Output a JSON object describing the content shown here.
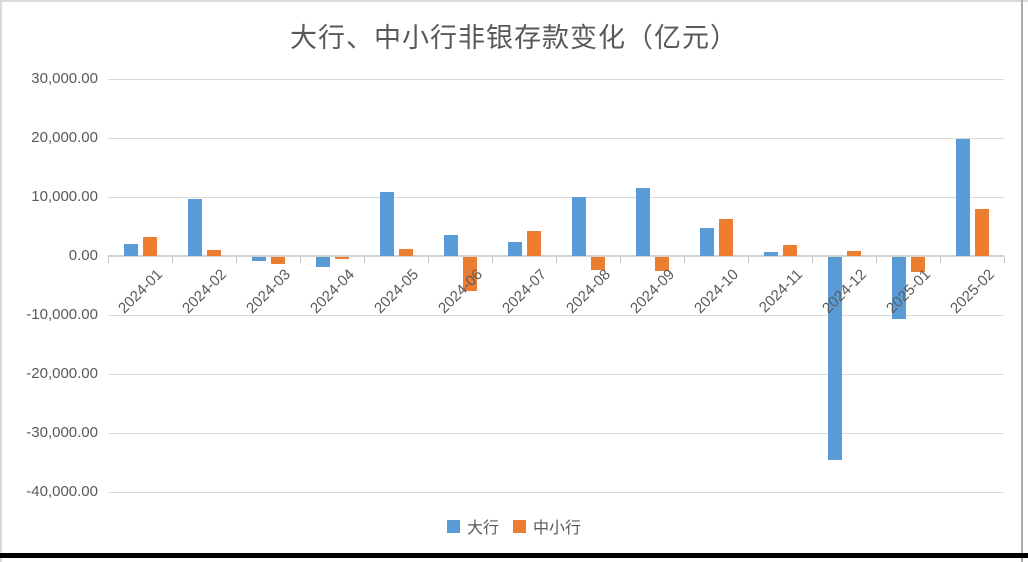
{
  "title": "大行、中小行非银存款变化（亿元）",
  "legend": [
    {
      "label": "大行",
      "color": "#5B9BD5"
    },
    {
      "label": "中小行",
      "color": "#ED7D31"
    }
  ],
  "colors": {
    "series_blue": "#5B9BD5",
    "series_orange": "#ED7D31",
    "gridline": "#d9d9d9",
    "text": "#595959"
  },
  "chart_data": {
    "type": "bar",
    "title": "大行、中小行非银存款变化（亿元）",
    "categories": [
      "2024-01",
      "2024-02",
      "2024-03",
      "2024-04",
      "2024-05",
      "2024-06",
      "2024-07",
      "2024-08",
      "2024-09",
      "2024-10",
      "2024-11",
      "2024-12",
      "2025-01",
      "2025-02"
    ],
    "series": [
      {
        "name": "大行",
        "key": "large-banks",
        "color": "#5B9BD5",
        "values": [
          2100,
          9700,
          -700,
          -1700,
          10800,
          3600,
          2400,
          10000,
          11500,
          4700,
          700,
          -34400,
          -10500,
          19900
        ]
      },
      {
        "name": "中小行",
        "key": "small-mid-banks",
        "color": "#ED7D31",
        "values": [
          3200,
          1000,
          -1200,
          -400,
          1200,
          -5800,
          4300,
          -2200,
          -2400,
          6300,
          1900,
          800,
          -2500,
          7900
        ]
      }
    ],
    "xlabel": "",
    "ylabel": "",
    "ylim": [
      -40000,
      30000
    ],
    "y_tick_values": [
      30000,
      20000,
      10000,
      0,
      -10000,
      -20000,
      -30000,
      -40000
    ],
    "y_tick_labels": [
      "30,000.00",
      "20,000.00",
      "10,000.00",
      "0.00",
      "-10,000.00",
      "-20,000.00",
      "-30,000.00",
      "-40,000.00"
    ],
    "grid": true,
    "legend_position": "bottom"
  }
}
